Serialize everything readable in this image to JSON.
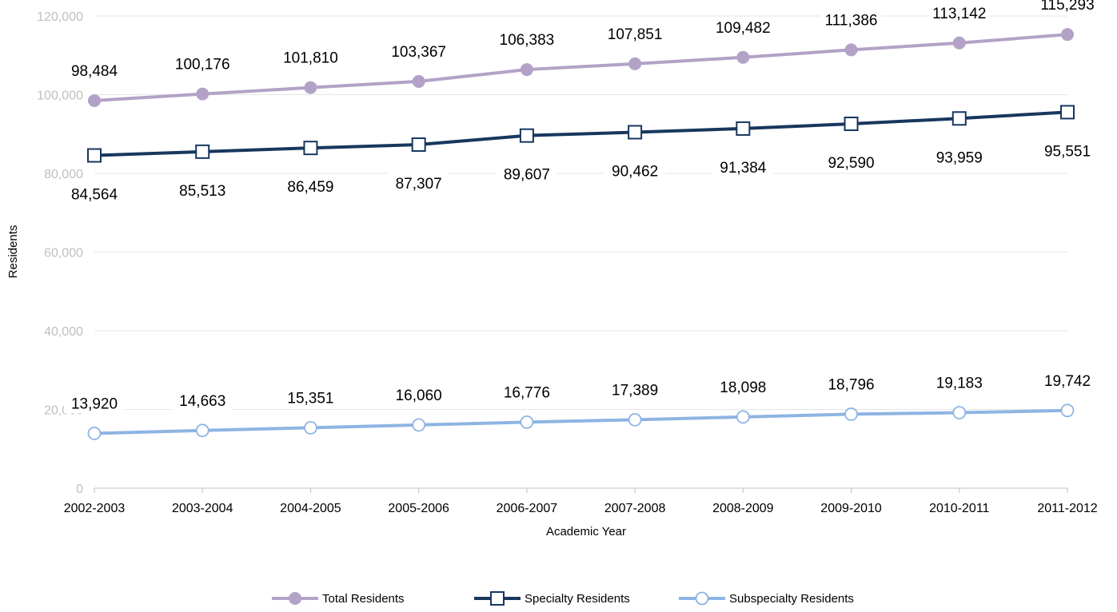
{
  "chart_data": {
    "type": "line",
    "title": "",
    "xlabel": "Academic Year",
    "ylabel": "Residents",
    "ylim": [
      0,
      120000
    ],
    "y_ticks": [
      {
        "value": 0,
        "label": "0"
      },
      {
        "value": 20000,
        "label": "20,000"
      },
      {
        "value": 40000,
        "label": "40,000"
      },
      {
        "value": 60000,
        "label": "60,000"
      },
      {
        "value": 80000,
        "label": "80,000"
      },
      {
        "value": 100000,
        "label": "100,000"
      },
      {
        "value": 120000,
        "label": "120,000"
      }
    ],
    "grid": true,
    "legend_position": "bottom",
    "categories": [
      "2002-2003",
      "2003-2004",
      "2004-2005",
      "2005-2006",
      "2006-2007",
      "2007-2008",
      "2008-2009",
      "2009-2010",
      "2010-2011",
      "2011-2012"
    ],
    "series": [
      {
        "name": "Total Residents",
        "color": "#b3a2c7",
        "marker": "filled-circle",
        "label_position": "above",
        "values": [
          98484,
          100176,
          101810,
          103367,
          106383,
          107851,
          109482,
          111386,
          113142,
          115293
        ],
        "labels": [
          "98,484",
          "100,176",
          "101,810",
          "103,367",
          "106,383",
          "107,851",
          "109,482",
          "111,386",
          "113,142",
          "115,293"
        ]
      },
      {
        "name": "Specialty Residents",
        "color": "#17375e",
        "marker": "hollow-square",
        "label_position": "below",
        "values": [
          84564,
          85513,
          86459,
          87307,
          89607,
          90462,
          91384,
          92590,
          93959,
          95551
        ],
        "labels": [
          "84,564",
          "85,513",
          "86,459",
          "87,307",
          "89,607",
          "90,462",
          "91,384",
          "92,590",
          "93,959",
          "95,551"
        ]
      },
      {
        "name": "Subspecialty Residents",
        "color": "#8eb4e3",
        "marker": "hollow-circle",
        "label_position": "above",
        "values": [
          13920,
          14663,
          15351,
          16060,
          16776,
          17389,
          18098,
          18796,
          19183,
          19742
        ],
        "labels": [
          "13,920",
          "14,663",
          "15,351",
          "16,060",
          "16,776",
          "17,389",
          "18,098",
          "18,796",
          "19,183",
          "19,742"
        ]
      }
    ]
  }
}
